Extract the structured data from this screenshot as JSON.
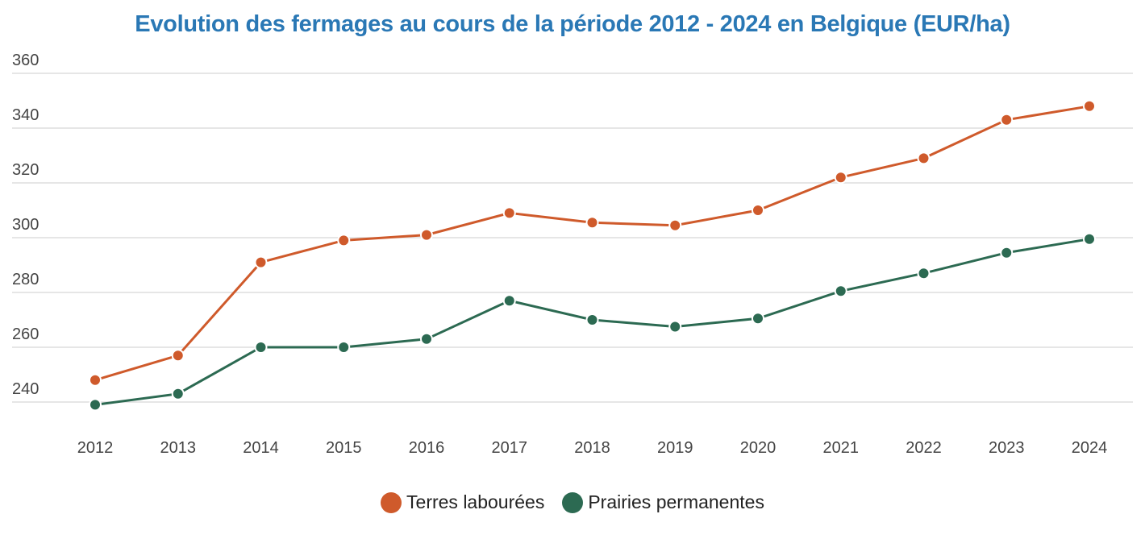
{
  "chart_data": {
    "type": "line",
    "title": "Evolution des fermages au cours de la période 2012 - 2024 en Belgique (EUR/ha)",
    "xlabel": "",
    "ylabel": "",
    "x": [
      "2012",
      "2013",
      "2014",
      "2015",
      "2016",
      "2017",
      "2018",
      "2019",
      "2020",
      "2021",
      "2022",
      "2023",
      "2024"
    ],
    "ylim": [
      240,
      360
    ],
    "yticks": [
      "240",
      "260",
      "280",
      "300",
      "320",
      "340",
      "360"
    ],
    "grid": true,
    "legend_position": "bottom",
    "series": [
      {
        "name": "Terres labourées",
        "color": "#cf5a2b",
        "values": [
          248,
          257,
          291,
          299,
          301,
          309,
          305.5,
          304.5,
          310,
          322,
          329,
          343,
          348
        ]
      },
      {
        "name": "Prairies permanentes",
        "color": "#2c6a52",
        "values": [
          239,
          243,
          260,
          260,
          263,
          277,
          270,
          267.5,
          270.5,
          280.5,
          287,
          294.5,
          299.5
        ]
      }
    ]
  }
}
